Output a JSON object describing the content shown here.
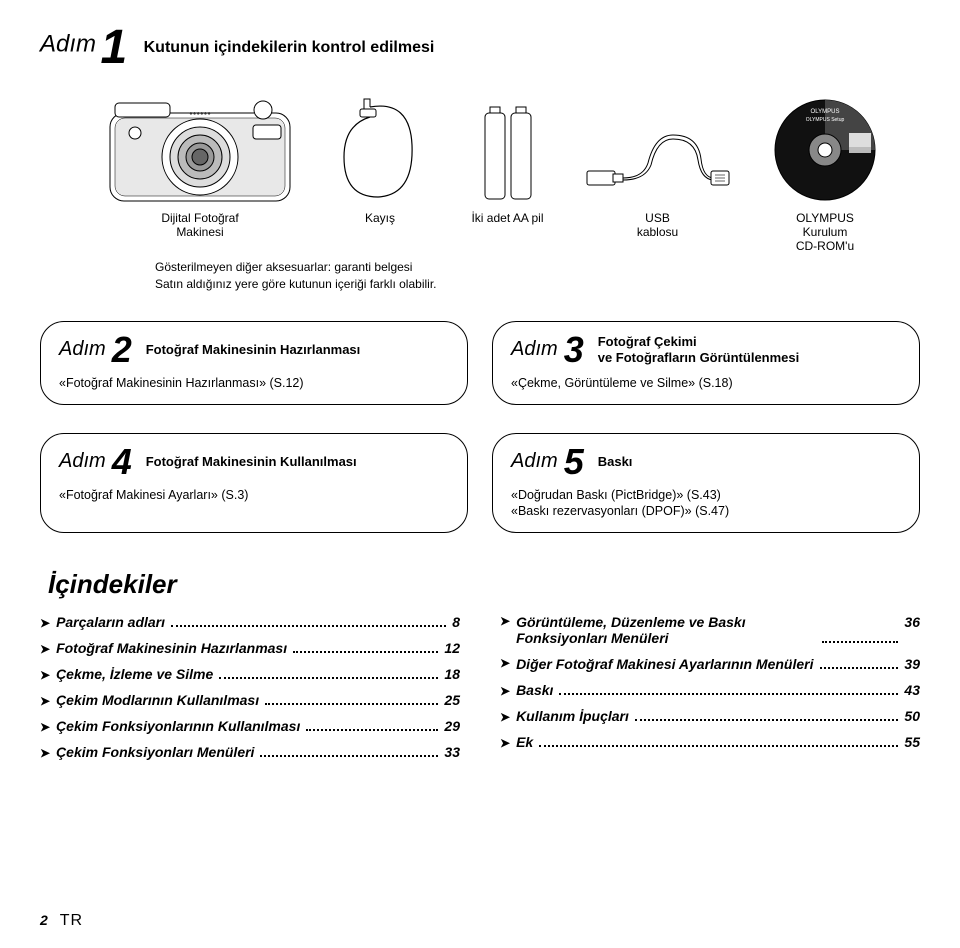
{
  "step1": {
    "label": "Adım",
    "num": "1",
    "title": "Kutunun içindekilerin kontrol edilmesi",
    "items": {
      "camera": "Dijital Fotoğraf\nMakinesi",
      "strap": "Kayış",
      "batteries": "İki adet AA pil",
      "usb": "USB\nkablosu",
      "cd": "OLYMPUS\nKurulum\nCD-ROM'u"
    },
    "cd_label1": "OLYMPUS",
    "cd_label2": "OLYMPUS Setup",
    "note1": "Gösterilmeyen diğer aksesuarlar: garanti belgesi",
    "note2": "Satın aldığınız yere göre kutunun içeriği farklı olabilir."
  },
  "step2": {
    "label": "Adım",
    "num": "2",
    "title": "Fotoğraf Makinesinin Hazırlanması",
    "ref": "«Fotoğraf Makinesinin Hazırlanması» (S.12)"
  },
  "step3": {
    "label": "Adım",
    "num": "3",
    "title": "Fotoğraf Çekimi\nve Fotoğrafların Görüntülenmesi",
    "ref": "«Çekme, Görüntüleme ve Silme» (S.18)"
  },
  "step4": {
    "label": "Adım",
    "num": "4",
    "title": "Fotoğraf Makinesinin Kullanılması",
    "ref": "«Fotoğraf Makinesi Ayarları» (S.3)"
  },
  "step5": {
    "label": "Adım",
    "num": "5",
    "title": "Baskı",
    "ref1": "«Doğrudan Baskı (PictBridge)» (S.43)",
    "ref2": "«Baskı rezervasyonları (DPOF)» (S.47)"
  },
  "toc": {
    "heading": "İçindekiler",
    "left": [
      {
        "t": "Parçaların adları",
        "p": "8"
      },
      {
        "t": "Fotoğraf Makinesinin Hazırlanması",
        "p": "12"
      },
      {
        "t": "Çekme, İzleme ve Silme",
        "p": "18"
      },
      {
        "t": "Çekim Modlarının Kullanılması",
        "p": "25"
      },
      {
        "t": "Çekim Fonksiyonlarının Kullanılması",
        "p": "29"
      },
      {
        "t": "Çekim Fonksiyonları Menüleri",
        "p": "33"
      }
    ],
    "right": [
      {
        "t": "Görüntüleme, Düzenleme ve Baskı Fonksiyonları Menüleri",
        "p": "36",
        "wrap": true
      },
      {
        "t": "Diğer Fotoğraf Makinesi Ayarlarının Menüleri",
        "p": "39",
        "wrap": true
      },
      {
        "t": "Baskı",
        "p": "43"
      },
      {
        "t": "Kullanım İpuçları",
        "p": "50"
      },
      {
        "t": "Ek",
        "p": "55"
      }
    ]
  },
  "footer": {
    "page": "2",
    "lang": "TR"
  }
}
